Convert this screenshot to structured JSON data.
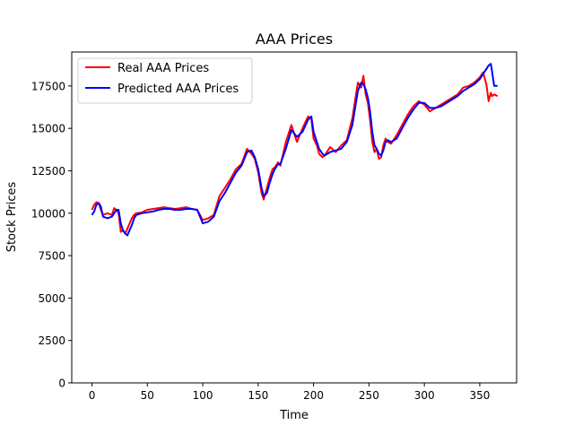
{
  "chart_data": {
    "type": "line",
    "title": "AAA Prices",
    "xlabel": "Time",
    "ylabel": "Stock Prices",
    "xlim": [
      -18.25,
      383.25
    ],
    "ylim": [
      0,
      19500
    ],
    "xticks": [
      0,
      50,
      100,
      150,
      200,
      250,
      300,
      350
    ],
    "yticks": [
      0,
      2500,
      5000,
      7500,
      10000,
      12500,
      15000,
      17500
    ],
    "grid": false,
    "legend_position": "top-left",
    "series": [
      {
        "name": "Real AAA Prices",
        "color": "#ff0000",
        "x": [
          0,
          2,
          4,
          6,
          8,
          10,
          14,
          18,
          20,
          22,
          24,
          26,
          28,
          30,
          32,
          34,
          36,
          38,
          40,
          45,
          50,
          55,
          60,
          65,
          70,
          75,
          80,
          85,
          90,
          95,
          100,
          105,
          110,
          115,
          120,
          125,
          130,
          135,
          140,
          144,
          147,
          150,
          153,
          155,
          158,
          160,
          163,
          165,
          168,
          170,
          175,
          180,
          185,
          190,
          195,
          198,
          200,
          203,
          205,
          208,
          210,
          215,
          220,
          225,
          230,
          235,
          240,
          243,
          245,
          247,
          249,
          251,
          253,
          255,
          257,
          259,
          261,
          263,
          265,
          267,
          270,
          275,
          280,
          285,
          290,
          295,
          300,
          305,
          310,
          315,
          320,
          325,
          330,
          335,
          340,
          345,
          350,
          353,
          356,
          358,
          360,
          361,
          363,
          366
        ],
        "y": [
          10200,
          10500,
          10650,
          10600,
          10200,
          9900,
          10000,
          9900,
          10300,
          10200,
          10000,
          8900,
          9000,
          8800,
          9100,
          9400,
          9700,
          9900,
          10000,
          10050,
          10200,
          10250,
          10300,
          10350,
          10300,
          10250,
          10300,
          10350,
          10250,
          10200,
          9600,
          9700,
          9900,
          11000,
          11500,
          12000,
          12600,
          12900,
          13800,
          13500,
          13200,
          12400,
          11200,
          10800,
          11500,
          12000,
          12600,
          12700,
          13000,
          12800,
          14200,
          15200,
          14200,
          15000,
          15700,
          15600,
          14400,
          14000,
          13500,
          13300,
          13400,
          13900,
          13600,
          14000,
          14300,
          15600,
          17700,
          17400,
          18100,
          17000,
          16500,
          15500,
          14200,
          13600,
          13800,
          13200,
          13300,
          14000,
          14400,
          14200,
          14100,
          14600,
          15200,
          15800,
          16300,
          16600,
          16400,
          16000,
          16200,
          16400,
          16600,
          16800,
          17000,
          17400,
          17500,
          17700,
          18000,
          18300,
          17600,
          16600,
          17100,
          16900,
          17000,
          16900
        ]
      },
      {
        "name": "Predicted AAA Prices",
        "color": "#0000ff",
        "x": [
          0,
          2,
          4,
          6,
          8,
          10,
          14,
          18,
          20,
          22,
          24,
          26,
          28,
          30,
          32,
          34,
          36,
          38,
          40,
          45,
          50,
          55,
          60,
          65,
          70,
          75,
          80,
          85,
          90,
          95,
          100,
          105,
          110,
          115,
          120,
          125,
          130,
          135,
          140,
          144,
          147,
          150,
          153,
          155,
          158,
          160,
          163,
          165,
          168,
          170,
          175,
          180,
          185,
          190,
          195,
          198,
          200,
          203,
          205,
          208,
          210,
          215,
          220,
          225,
          230,
          235,
          240,
          243,
          245,
          247,
          249,
          251,
          253,
          255,
          257,
          259,
          261,
          263,
          265,
          267,
          270,
          275,
          280,
          285,
          290,
          295,
          300,
          305,
          310,
          315,
          320,
          325,
          330,
          335,
          340,
          345,
          350,
          353,
          356,
          358,
          360,
          361,
          363,
          366
        ],
        "y": [
          9900,
          10100,
          10500,
          10600,
          10400,
          9800,
          9700,
          9800,
          10000,
          10200,
          10200,
          9400,
          9000,
          8800,
          8700,
          9000,
          9300,
          9700,
          9900,
          10000,
          10050,
          10100,
          10200,
          10250,
          10250,
          10200,
          10200,
          10250,
          10250,
          10200,
          9400,
          9500,
          9800,
          10700,
          11200,
          11800,
          12400,
          12800,
          13600,
          13700,
          13300,
          12600,
          11500,
          11000,
          11200,
          11700,
          12300,
          12600,
          12900,
          12900,
          13800,
          14900,
          14500,
          14800,
          15500,
          15700,
          14800,
          14200,
          13800,
          13500,
          13400,
          13600,
          13700,
          13800,
          14200,
          15200,
          17200,
          17700,
          17600,
          17300,
          16800,
          16000,
          14800,
          14000,
          13800,
          13500,
          13400,
          13700,
          14200,
          14300,
          14200,
          14400,
          15000,
          15600,
          16100,
          16500,
          16500,
          16200,
          16200,
          16300,
          16500,
          16700,
          16900,
          17200,
          17400,
          17600,
          17900,
          18200,
          18500,
          18700,
          18800,
          18400,
          17500,
          17500
        ]
      }
    ]
  }
}
